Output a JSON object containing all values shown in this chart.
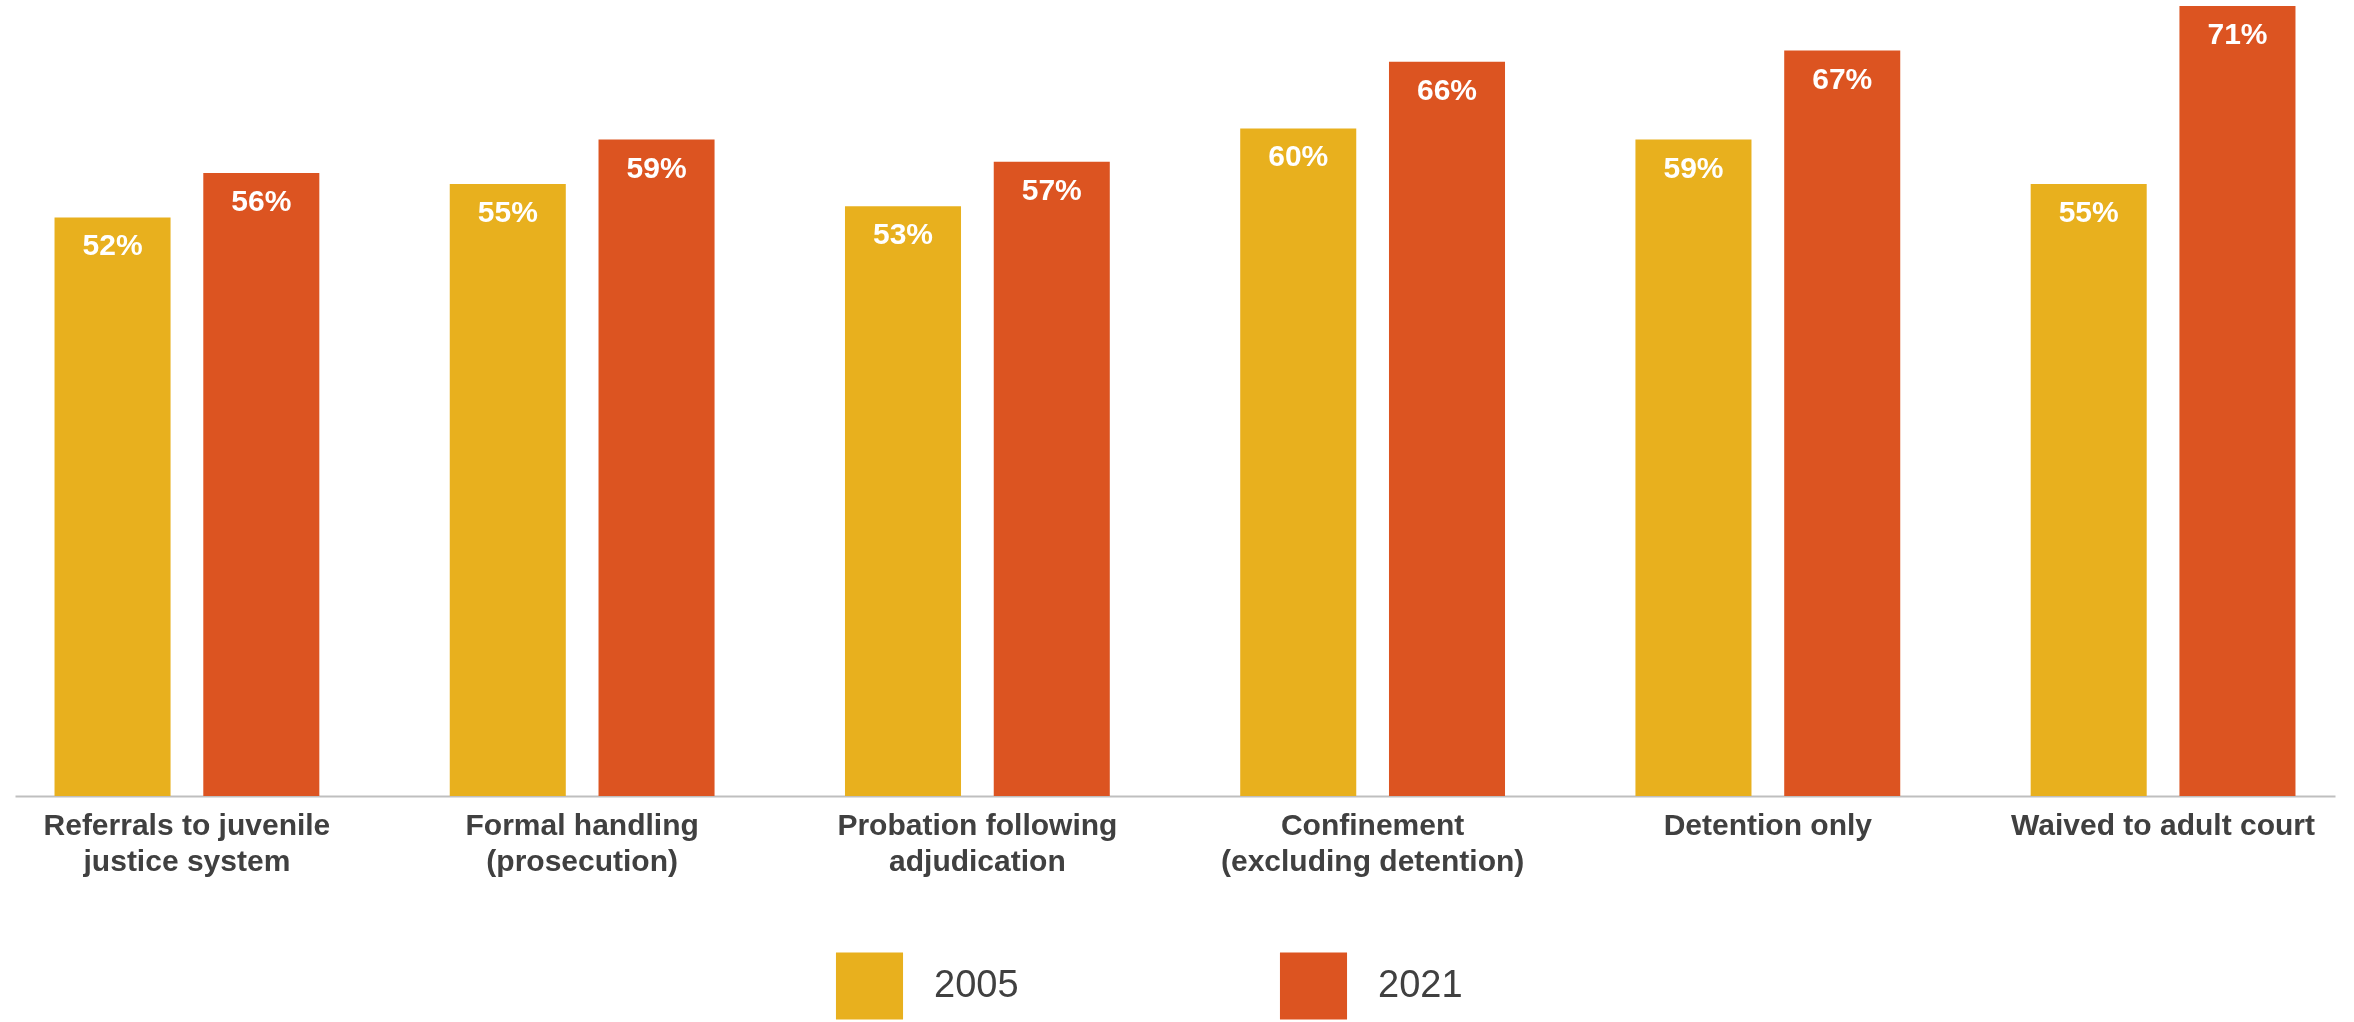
{
  "chart_data": {
    "type": "bar",
    "categories": [
      "Referrals to juvenile\njustice system",
      "Formal handling\n(prosecution)",
      "Probation following\nadjudication",
      "Confinement\n(excluding detention)",
      "Detention only",
      "Waived to adult court"
    ],
    "series": [
      {
        "name": "2005",
        "color": "#e8b01e",
        "values": [
          52,
          55,
          53,
          60,
          59,
          55
        ],
        "value_labels": [
          "52%",
          "55%",
          "53%",
          "60%",
          "59%",
          "55%"
        ]
      },
      {
        "name": "2021",
        "color": "#dc5421",
        "values": [
          56,
          59,
          57,
          66,
          67,
          71
        ],
        "value_labels": [
          "56%",
          "59%",
          "57%",
          "66%",
          "67%",
          "71%"
        ]
      }
    ],
    "legend": "bottom"
  }
}
